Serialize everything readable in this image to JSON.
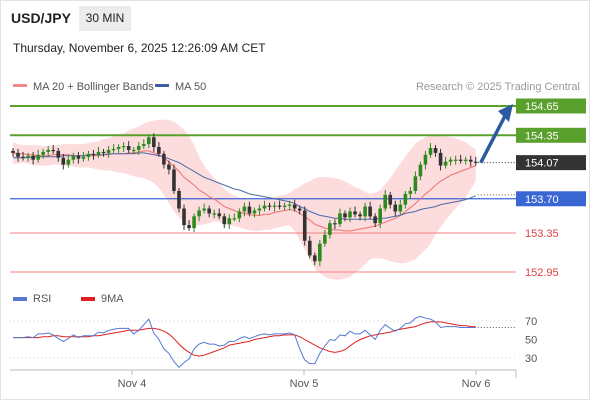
{
  "header": {
    "symbol": "USD/JPY",
    "timeframe": "30 MIN",
    "datetime": "Thursday, November 6, 2025 12:26:09 AM CET"
  },
  "legend": {
    "main": [
      {
        "label": "MA 20 + Bollinger Bands",
        "color": "#f08a8a"
      },
      {
        "label": "MA 50",
        "color": "#3f5f9f"
      }
    ],
    "indicator": [
      {
        "label": "RSI",
        "color": "#5578d0"
      },
      {
        "label": "9MA",
        "color": "#e02020"
      }
    ],
    "credit": "Research © 2025 Trading Central"
  },
  "colors": {
    "bull": "#2d8a1e",
    "bear": "#333333",
    "resistance": "#5aa02c",
    "pivot": "#3a66d4",
    "support": "#f08080",
    "arrow": "#2c5aa0",
    "current": "#333333",
    "band": "#fbd0d0",
    "ma20": "#f07070",
    "ma50": "#4a6aaa",
    "rsi": "#5578d0",
    "rsi_ma": "#e02020"
  },
  "chart_data": [
    {
      "type": "candlestick",
      "x_ticks": [
        "Nov 4",
        "Nov 5",
        "Nov 6"
      ],
      "y_range": [
        152.9,
        154.75
      ],
      "current_price": "154.07",
      "levels": [
        {
          "value": 154.65,
          "label": "154.65",
          "role": "resistance"
        },
        {
          "value": 154.35,
          "label": "154.35",
          "role": "resistance"
        },
        {
          "value": 153.7,
          "label": "153.70",
          "role": "pivot"
        },
        {
          "value": 153.35,
          "label": "153.35",
          "role": "support"
        },
        {
          "value": 152.95,
          "label": "152.95",
          "role": "support"
        }
      ],
      "scenario_arrow": {
        "from": 154.07,
        "to": 154.65
      },
      "closes": [
        154.17,
        154.13,
        154.12,
        154.14,
        154.1,
        154.15,
        154.18,
        154.2,
        154.19,
        154.12,
        154.05,
        154.1,
        154.14,
        154.11,
        154.13,
        154.16,
        154.15,
        154.18,
        154.17,
        154.2,
        154.21,
        154.23,
        154.24,
        154.2,
        154.2,
        154.24,
        154.26,
        154.33,
        154.23,
        154.16,
        154.05,
        154.0,
        153.78,
        153.6,
        153.43,
        153.4,
        153.52,
        153.58,
        153.6,
        153.55,
        153.55,
        153.52,
        153.44,
        153.5,
        153.5,
        153.57,
        153.62,
        153.55,
        153.58,
        153.6,
        153.63,
        153.62,
        153.63,
        153.62,
        153.63,
        153.64,
        153.6,
        153.58,
        153.27,
        153.12,
        153.06,
        153.24,
        153.33,
        153.45,
        153.44,
        153.55,
        153.51,
        153.57,
        153.54,
        153.52,
        153.62,
        153.52,
        153.45,
        153.6,
        153.74,
        153.64,
        153.57,
        153.64,
        153.75,
        153.78,
        153.93,
        154.05,
        154.15,
        154.22,
        154.17,
        154.04,
        154.08,
        154.1,
        154.1,
        154.09,
        154.1,
        154.08,
        154.07
      ],
      "ma20": [
        154.17,
        154.16,
        154.16,
        154.15,
        154.15,
        154.14,
        154.14,
        154.14,
        154.15,
        154.15,
        154.15,
        154.15,
        154.14,
        154.14,
        154.14,
        154.14,
        154.14,
        154.14,
        154.15,
        154.15,
        154.16,
        154.16,
        154.16,
        154.17,
        154.17,
        154.18,
        154.19,
        154.19,
        154.17,
        154.15,
        154.12,
        154.08,
        154.03,
        153.98,
        153.92,
        153.88,
        153.84,
        153.79,
        153.76,
        153.72,
        153.7,
        153.66,
        153.62,
        153.6,
        153.58,
        153.56,
        153.55,
        153.54,
        153.53,
        153.53,
        153.54,
        153.54,
        153.56,
        153.57,
        153.58,
        153.59,
        153.58,
        153.55,
        153.52,
        153.48,
        153.44,
        153.42,
        153.4,
        153.39,
        153.38,
        153.38,
        153.37,
        153.37,
        153.38,
        153.39,
        153.4,
        153.41,
        153.42,
        153.44,
        153.46,
        153.48,
        153.5,
        153.53,
        153.57,
        153.61,
        153.65,
        153.7,
        153.75,
        153.79,
        153.84,
        153.88,
        153.91,
        153.94,
        153.96,
        153.98,
        154.0,
        154.02,
        154.04
      ],
      "bb_upper": [
        154.28,
        154.26,
        154.25,
        154.25,
        154.25,
        154.25,
        154.24,
        154.24,
        154.25,
        154.25,
        154.26,
        154.26,
        154.26,
        154.26,
        154.26,
        154.27,
        154.28,
        154.29,
        154.31,
        154.32,
        154.34,
        154.36,
        154.37,
        154.4,
        154.42,
        154.44,
        154.47,
        154.49,
        154.5,
        154.51,
        154.51,
        154.51,
        154.49,
        154.45,
        154.41,
        154.34,
        154.25,
        154.13,
        154.04,
        153.97,
        153.91,
        153.86,
        153.8,
        153.76,
        153.73,
        153.71,
        153.71,
        153.69,
        153.69,
        153.69,
        153.7,
        153.7,
        153.72,
        153.73,
        153.74,
        153.76,
        153.8,
        153.82,
        153.86,
        153.88,
        153.91,
        153.92,
        153.92,
        153.92,
        153.91,
        153.9,
        153.88,
        153.85,
        153.82,
        153.8,
        153.77,
        153.75,
        153.76,
        153.79,
        153.85,
        153.91,
        153.99,
        154.06,
        154.13,
        154.2,
        154.27,
        154.3,
        154.33,
        154.35,
        154.36,
        154.35,
        154.34,
        154.33,
        154.32,
        154.3,
        154.28,
        154.24,
        154.2
      ],
      "bb_lower": [
        154.06,
        154.06,
        154.07,
        154.06,
        154.05,
        154.04,
        154.04,
        154.04,
        154.05,
        154.05,
        154.04,
        154.04,
        154.03,
        154.02,
        154.02,
        154.02,
        154.01,
        154.0,
        153.99,
        153.99,
        153.98,
        153.97,
        153.96,
        153.95,
        153.93,
        153.92,
        153.91,
        153.89,
        153.86,
        153.81,
        153.74,
        153.66,
        153.57,
        153.51,
        153.45,
        153.42,
        153.42,
        153.43,
        153.44,
        153.45,
        153.47,
        153.46,
        153.44,
        153.43,
        153.42,
        153.41,
        153.39,
        153.38,
        153.37,
        153.37,
        153.38,
        153.38,
        153.4,
        153.41,
        153.42,
        153.43,
        153.37,
        153.28,
        153.18,
        153.08,
        152.98,
        152.94,
        152.9,
        152.88,
        152.87,
        152.87,
        152.88,
        152.9,
        152.94,
        152.98,
        153.03,
        153.08,
        153.09,
        153.09,
        153.08,
        153.06,
        153.05,
        153.04,
        153.04,
        153.06,
        153.08,
        153.13,
        153.18,
        153.24,
        153.33,
        153.41,
        153.48,
        153.54,
        153.6,
        153.66,
        153.71,
        153.8,
        153.88
      ],
      "ma50": [
        154.12,
        154.12,
        154.12,
        154.12,
        154.13,
        154.13,
        154.13,
        154.13,
        154.13,
        154.13,
        154.14,
        154.14,
        154.14,
        154.14,
        154.14,
        154.15,
        154.15,
        154.15,
        154.15,
        154.16,
        154.16,
        154.16,
        154.16,
        154.16,
        154.16,
        154.17,
        154.17,
        154.16,
        154.15,
        154.14,
        154.13,
        154.11,
        154.09,
        154.07,
        154.04,
        154.01,
        153.98,
        153.95,
        153.92,
        153.9,
        153.88,
        153.86,
        153.84,
        153.82,
        153.8,
        153.79,
        153.77,
        153.75,
        153.74,
        153.73,
        153.72,
        153.71,
        153.7,
        153.69,
        153.68,
        153.67,
        153.65,
        153.62,
        153.6,
        153.57,
        153.55,
        153.53,
        153.52,
        153.51,
        153.5,
        153.5,
        153.49,
        153.49,
        153.49,
        153.49,
        153.49,
        153.49,
        153.49,
        153.5,
        153.5,
        153.51,
        153.52,
        153.53,
        153.55,
        153.56,
        153.57,
        153.59,
        153.6,
        153.61,
        153.62,
        153.64,
        153.65,
        153.66,
        153.67,
        153.68,
        153.69,
        153.71,
        153.73
      ]
    },
    {
      "type": "line",
      "title": "RSI",
      "y_ticks": [
        70,
        50,
        30
      ],
      "y_range": [
        15,
        85
      ],
      "series": [
        {
          "name": "RSI",
          "values": [
            52,
            52,
            52,
            53,
            52,
            56,
            56,
            57,
            55,
            51,
            48,
            51,
            55,
            52,
            54,
            54,
            54,
            58,
            57,
            60,
            61,
            62,
            62,
            62,
            56,
            60,
            66,
            72,
            57,
            50,
            40,
            35,
            26,
            20,
            25,
            29,
            40,
            45,
            47,
            45,
            45,
            43,
            44,
            48,
            48,
            51,
            53,
            51,
            53,
            55,
            56,
            55,
            56,
            56,
            56,
            57,
            55,
            40,
            28,
            24,
            24,
            35,
            43,
            50,
            49,
            55,
            54,
            59,
            56,
            56,
            60,
            55,
            50,
            60,
            66,
            62,
            59,
            62,
            67,
            68,
            73,
            75,
            73,
            72,
            69,
            63,
            64,
            64,
            64,
            63,
            63,
            63,
            63
          ]
        },
        {
          "name": "9MA",
          "values": [
            52,
            52,
            52,
            52,
            52,
            52,
            53,
            53,
            54,
            54,
            53,
            53,
            53,
            53,
            53,
            53,
            54,
            54,
            55,
            56,
            57,
            58,
            59,
            60,
            60,
            60,
            61,
            62,
            62,
            61,
            59,
            56,
            51,
            45,
            40,
            36,
            33,
            32,
            33,
            35,
            37,
            39,
            41,
            44,
            45,
            46,
            47,
            48,
            50,
            51,
            52,
            53,
            54,
            54,
            55,
            55,
            55,
            53,
            50,
            47,
            44,
            41,
            39,
            37,
            36,
            37,
            39,
            43,
            47,
            50,
            52,
            54,
            55,
            56,
            57,
            58,
            60,
            61,
            62,
            63,
            64,
            66,
            68,
            69,
            69,
            69,
            68,
            67,
            66,
            65,
            65,
            64,
            64
          ]
        }
      ]
    }
  ]
}
